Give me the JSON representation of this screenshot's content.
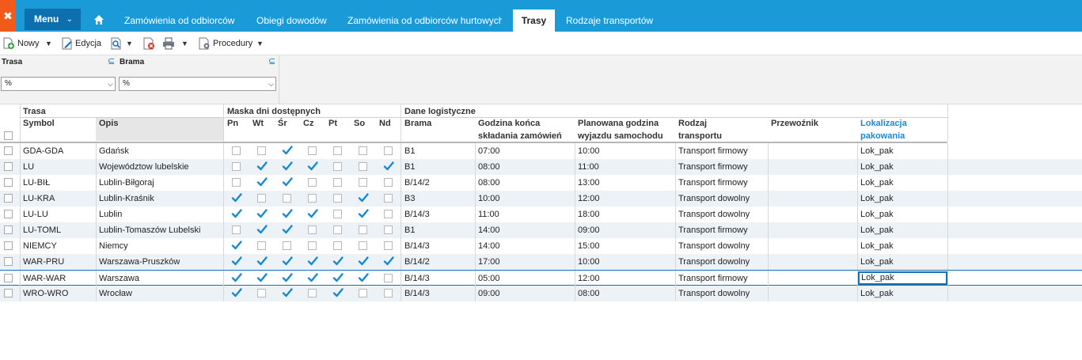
{
  "topbar": {
    "menu_label": "Menu",
    "tabs": [
      {
        "label": "Zamówienia od odbiorców"
      },
      {
        "label": "Obiegi dowodów"
      },
      {
        "label": "Zamówienia od odbiorców hurtowych"
      },
      {
        "label": "Trasy"
      },
      {
        "label": "Rodzaje transportów"
      }
    ],
    "accent": "#1a9bd7",
    "logo_color": "#f05a1a"
  },
  "toolbar": {
    "new_label": "Nowy",
    "edit_label": "Edycja",
    "procedures_label": "Procedury"
  },
  "filters": {
    "route": {
      "label": "Trasa",
      "value": "%"
    },
    "gate": {
      "label": "Brama",
      "value": "%"
    }
  },
  "grid": {
    "groups": {
      "route": "Trasa",
      "mask": "Maska dni dostępnych",
      "logistics": "Dane logistyczne"
    },
    "columns": {
      "symbol": "Symbol",
      "description": "Opis",
      "mon": "Pn",
      "tue": "Wt",
      "wed": "Śr",
      "thu": "Cz",
      "fri": "Pt",
      "sat": "So",
      "sun": "Nd",
      "gate": "Brama",
      "order_deadline_l1": "Godzina końca",
      "order_deadline_l2": "składania zamówień",
      "departure_l1": "Planowana godzina",
      "departure_l2": "wyjazdu samochodu",
      "transport_type_l1": "Rodzaj",
      "transport_type_l2": "transportu",
      "carrier": "Przewoźnik",
      "packing_l1": "Lokalizacja",
      "packing_l2": "pakowania"
    },
    "rows": [
      {
        "symbol": "GDA-GDA",
        "description": "Gdańsk",
        "days": [
          false,
          false,
          true,
          false,
          false,
          false,
          false
        ],
        "gate": "B1",
        "order_deadline": "07:00",
        "departure": "10:00",
        "transport_type": "Transport firmowy",
        "carrier": "",
        "packing_location": "Lok_pak"
      },
      {
        "symbol": "LU",
        "description": "Województow lubelskie",
        "days": [
          false,
          true,
          true,
          true,
          false,
          false,
          true
        ],
        "gate": "B1",
        "order_deadline": "08:00",
        "departure": "11:00",
        "transport_type": "Transport firmowy",
        "carrier": "",
        "packing_location": "Lok_pak"
      },
      {
        "symbol": "LU-BIŁ",
        "description": "Lublin-Biłgoraj",
        "days": [
          false,
          true,
          true,
          false,
          false,
          false,
          false
        ],
        "gate": "B/14/2",
        "order_deadline": "08:00",
        "departure": "13:00",
        "transport_type": "Transport firmowy",
        "carrier": "",
        "packing_location": "Lok_pak"
      },
      {
        "symbol": "LU-KRA",
        "description": "Lublin-Kraśnik",
        "days": [
          true,
          false,
          false,
          false,
          false,
          true,
          false
        ],
        "gate": "B3",
        "order_deadline": "10:00",
        "departure": "12:00",
        "transport_type": "Transport dowolny",
        "carrier": "",
        "packing_location": "Lok_pak"
      },
      {
        "symbol": "LU-LU",
        "description": "Lublin",
        "days": [
          true,
          true,
          true,
          true,
          false,
          true,
          false
        ],
        "gate": "B/14/3",
        "order_deadline": "11:00",
        "departure": "18:00",
        "transport_type": "Transport dowolny",
        "carrier": "",
        "packing_location": "Lok_pak"
      },
      {
        "symbol": "LU-TOML",
        "description": "Lublin-Tomaszów Lubelski",
        "days": [
          false,
          true,
          true,
          false,
          false,
          false,
          false
        ],
        "gate": "B1",
        "order_deadline": "14:00",
        "departure": "09:00",
        "transport_type": "Transport firmowy",
        "carrier": "",
        "packing_location": "Lok_pak"
      },
      {
        "symbol": "NIEMCY",
        "description": "Niemcy",
        "days": [
          true,
          false,
          false,
          false,
          false,
          false,
          false
        ],
        "gate": "B/14/3",
        "order_deadline": "14:00",
        "departure": "15:00",
        "transport_type": "Transport dowolny",
        "carrier": "",
        "packing_location": "Lok_pak"
      },
      {
        "symbol": "WAR-PRU",
        "description": "Warszawa-Pruszków",
        "days": [
          true,
          true,
          true,
          true,
          true,
          true,
          true
        ],
        "gate": "B/14/2",
        "order_deadline": "17:00",
        "departure": "10:00",
        "transport_type": "Transport dowolny",
        "carrier": "",
        "packing_location": "Lok_pak"
      },
      {
        "symbol": "WAR-WAR",
        "description": "Warszawa",
        "days": [
          true,
          true,
          true,
          true,
          true,
          true,
          false
        ],
        "gate": "B/14/3",
        "order_deadline": "05:00",
        "departure": "12:00",
        "transport_type": "Transport firmowy",
        "carrier": "",
        "packing_location": "Lok_pak"
      },
      {
        "symbol": "WRO-WRO",
        "description": "Wrocław",
        "days": [
          true,
          false,
          true,
          false,
          true,
          false,
          false
        ],
        "gate": "B/14/3",
        "order_deadline": "09:00",
        "departure": "08:00",
        "transport_type": "Transport dowolny",
        "carrier": "",
        "packing_location": "Lok_pak"
      }
    ],
    "selected_row": 8
  }
}
